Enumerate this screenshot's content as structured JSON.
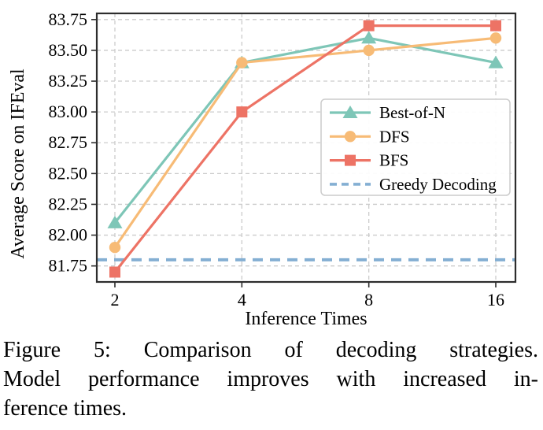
{
  "chart_data": {
    "type": "line",
    "xlabel": "Inference Times",
    "ylabel": "Average Score on IFEval",
    "categories": [
      "2",
      "4",
      "8",
      "16"
    ],
    "x_scale": "log2-equal-spacing",
    "yticks": [
      81.75,
      82.0,
      82.25,
      82.5,
      82.75,
      83.0,
      83.25,
      83.5,
      83.75
    ],
    "ytick_labels": [
      "81.75",
      "82.00",
      "82.25",
      "82.50",
      "82.75",
      "83.00",
      "83.25",
      "83.50",
      "83.75"
    ],
    "ylim": [
      81.62,
      83.8
    ],
    "grid": true,
    "grid_style": "dashed",
    "legend_position": "center-right",
    "series": [
      {
        "name": "Best-of-N",
        "marker": "triangle",
        "linestyle": "solid",
        "color": "#7EC6B7",
        "values": [
          82.1,
          83.4,
          83.6,
          83.4
        ]
      },
      {
        "name": "DFS",
        "marker": "circle",
        "linestyle": "solid",
        "color": "#F7BB76",
        "values": [
          81.9,
          83.4,
          83.5,
          83.6
        ]
      },
      {
        "name": "BFS",
        "marker": "square",
        "linestyle": "solid",
        "color": "#ED7365",
        "values": [
          81.7,
          83.0,
          83.7,
          83.7
        ]
      },
      {
        "name": "Greedy Decoding",
        "marker": "none",
        "linestyle": "dashed",
        "color": "#84AFD3",
        "hline": 81.8,
        "values": [
          81.8,
          81.8,
          81.8,
          81.8
        ]
      }
    ],
    "colors": {
      "spine": "#2d2d2d",
      "grid": "#cccccc",
      "text": "#000000"
    }
  },
  "caption": {
    "line1": "Figure 5:  Comparison of decoding strategies.",
    "line2": "Model performance improves with increased in-",
    "line3": "ference times."
  }
}
